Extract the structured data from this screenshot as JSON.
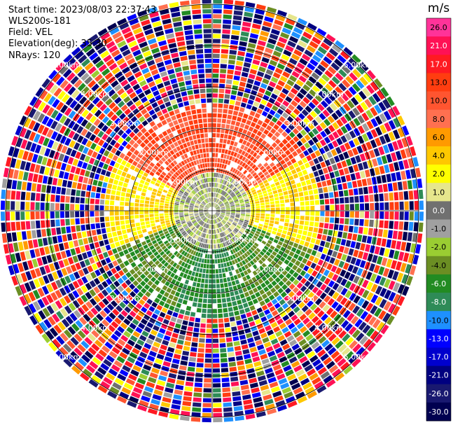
{
  "info": {
    "start_time": "Start time: 2023/08/03 22:37:43",
    "instrument": "WLS200s-181",
    "field": "Field: VEL",
    "elevation": "Elevation(deg): 35.30",
    "nrays": "NRays: 120"
  },
  "colors": {
    "background": "#ffffff",
    "grid": "#000000",
    "ring_label": "#ffffff"
  },
  "chart_data": {
    "type": "heatmap",
    "projection": "polar-ppi",
    "field": "VEL",
    "units": "m/s",
    "n_rays": 120,
    "max_range_km": 5.0,
    "rings_km": [
      1,
      2,
      3,
      4,
      5
    ],
    "ring_labels": [
      "1.00km",
      "2.00km",
      "3.00km",
      "4.00km",
      "5.00km"
    ],
    "colorbar": {
      "title": "m/s",
      "ticks": [
        "26.0",
        "21.0",
        "17.0",
        "13.0",
        "10.0",
        "8.0",
        "6.0",
        "4.0",
        "2.0",
        "1.0",
        "0.0",
        "-1.0",
        "-2.0",
        "-4.0",
        "-6.0",
        "-8.0",
        "-10.0",
        "-13.0",
        "-17.0",
        "-21.0",
        "-26.0",
        "-30.0"
      ],
      "colors": [
        "#ff3399",
        "#ff1155",
        "#ff1a22",
        "#ff3d10",
        "#ff5530",
        "#ff7050",
        "#ff9a00",
        "#ffc800",
        "#ffff00",
        "#e6e68c",
        "#707070",
        "#a0a0a0",
        "#9acd32",
        "#6b8e23",
        "#228b22",
        "#2e8b57",
        "#1e90ff",
        "#0000ff",
        "#0000cd",
        "#000080",
        "#191970",
        "#000050"
      ]
    },
    "sectors": [
      {
        "az_from": 0,
        "az_to": 360,
        "range_km": [
          0.1,
          0.9
        ],
        "velocity_range": [
          -2.0,
          2.0
        ],
        "note": "near-zero core"
      },
      {
        "az_from": 300,
        "az_to": 60,
        "range_km": [
          0.9,
          2.6
        ],
        "velocity_range": [
          8.0,
          17.0
        ]
      },
      {
        "az_from": 60,
        "az_to": 110,
        "range_km": [
          0.9,
          2.6
        ],
        "velocity_range": [
          2.0,
          6.0
        ]
      },
      {
        "az_from": 250,
        "az_to": 300,
        "range_km": [
          0.9,
          2.6
        ],
        "velocity_range": [
          2.0,
          6.0
        ]
      },
      {
        "az_from": 110,
        "az_to": 160,
        "range_km": [
          0.5,
          2.6
        ],
        "velocity_range": [
          -6.0,
          -2.0
        ]
      },
      {
        "az_from": 160,
        "az_to": 200,
        "range_km": [
          0.5,
          2.6
        ],
        "velocity_range": [
          -8.0,
          -4.0
        ]
      },
      {
        "az_from": 200,
        "az_to": 250,
        "range_km": [
          0.5,
          2.6
        ],
        "velocity_range": [
          -6.0,
          -2.0
        ]
      },
      {
        "az_from": 0,
        "az_to": 360,
        "range_km": [
          2.6,
          5.1
        ],
        "velocity_range": [
          -30.0,
          26.0
        ],
        "note": "noise"
      }
    ]
  }
}
